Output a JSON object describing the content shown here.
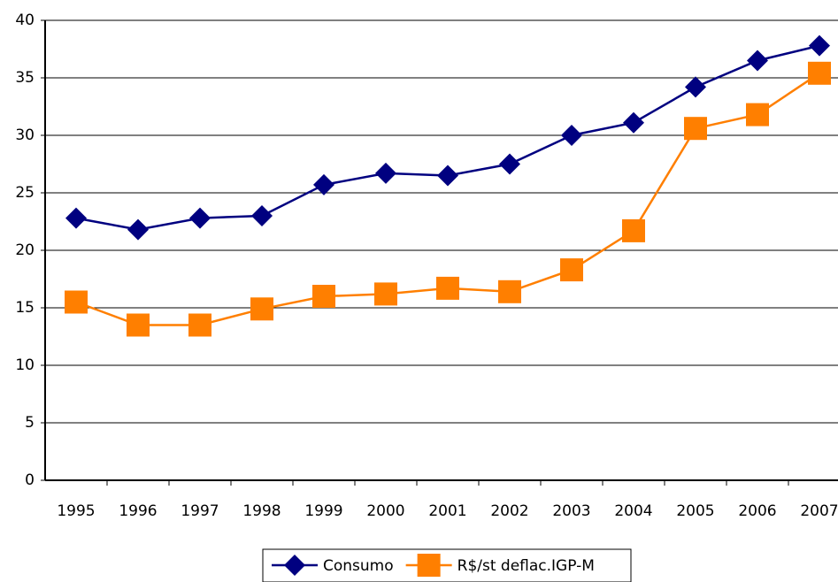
{
  "chart_data": {
    "type": "line",
    "categories": [
      "1995",
      "1996",
      "1997",
      "1998",
      "1999",
      "2000",
      "2001",
      "2002",
      "2003",
      "2004",
      "2005",
      "2006",
      "2007"
    ],
    "series": [
      {
        "name": "Consumo",
        "color": "#000080",
        "marker": "diamond",
        "values": [
          22.8,
          21.8,
          22.8,
          23.0,
          25.7,
          26.7,
          26.5,
          27.5,
          30.0,
          31.1,
          34.2,
          36.5,
          37.8
        ]
      },
      {
        "name": "R$/st deflac.IGP-M",
        "color": "#ff7f00",
        "marker": "square",
        "values": [
          15.5,
          13.5,
          13.5,
          14.9,
          16.0,
          16.2,
          16.7,
          16.4,
          18.3,
          21.7,
          30.6,
          31.8,
          35.4
        ]
      }
    ],
    "ylim": [
      0,
      40
    ],
    "yticks": [
      0,
      5,
      10,
      15,
      20,
      25,
      30,
      35,
      40
    ],
    "grid": true,
    "legend": "bottom"
  }
}
